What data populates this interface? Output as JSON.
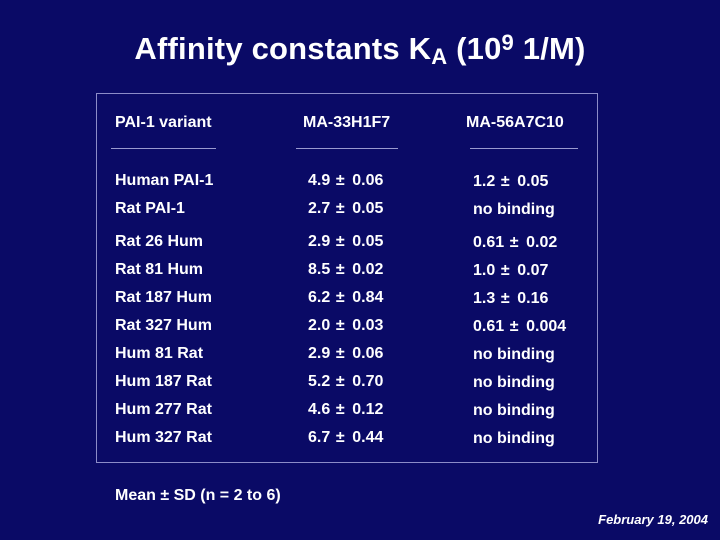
{
  "title": {
    "main": "Affinity constants K",
    "sub": "A",
    "mid": " (10",
    "sup": "9",
    "end": " 1/M)"
  },
  "table": {
    "headers": [
      "PAI-1 variant",
      "MA-33H1F7",
      "MA-56A7C10"
    ],
    "pm_symbol": "±",
    "rows": [
      {
        "variant": "Human PAI-1",
        "c1_val": "4.9",
        "c1_sd": "0.06",
        "c2_val": "1.2",
        "c2_sd": "0.05"
      },
      {
        "variant": "Rat PAI-1",
        "c1_val": "2.7",
        "c1_sd": "0.05",
        "c2_text": "no binding"
      },
      {
        "variant": "Rat 26 Hum",
        "c1_val": "2.9",
        "c1_sd": "0.05",
        "c2_val": "0.61",
        "c2_sd": "0.02"
      },
      {
        "variant": "Rat 81 Hum",
        "c1_val": "8.5",
        "c1_sd": "0.02",
        "c2_val": "1.0",
        "c2_sd": "0.07"
      },
      {
        "variant": "Rat 187 Hum",
        "c1_val": "6.2",
        "c1_sd": "0.84",
        "c2_val": "1.3",
        "c2_sd": "0.16"
      },
      {
        "variant": "Rat 327 Hum",
        "c1_val": "2.0",
        "c1_sd": "0.03",
        "c2_val": "0.61",
        "c2_sd": "0.004"
      },
      {
        "variant": "Hum 81 Rat",
        "c1_val": "2.9",
        "c1_sd": "0.06",
        "c2_text": "no binding"
      },
      {
        "variant": "Hum 187 Rat",
        "c1_val": "5.2",
        "c1_sd": "0.70",
        "c2_text": "no binding"
      },
      {
        "variant": "Hum 277 Rat",
        "c1_val": "4.6",
        "c1_sd": "0.12",
        "c2_text": "no binding"
      },
      {
        "variant": "Hum 327 Rat",
        "c1_val": "6.7",
        "c1_sd": "0.44",
        "c2_text": "no binding"
      }
    ]
  },
  "footnote": "Mean ± SD (n = 2 to 6)",
  "date": "February 19, 2004"
}
